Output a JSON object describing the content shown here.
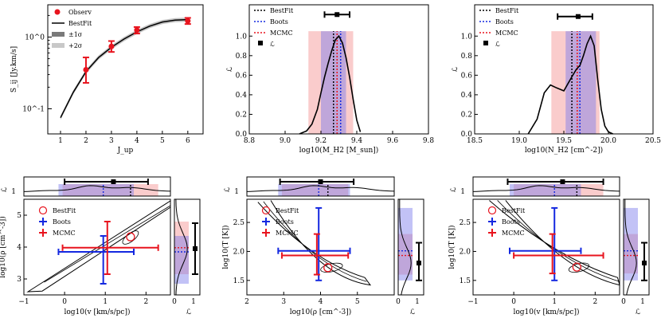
{
  "chart_data": [
    {
      "id": "sed",
      "type": "line",
      "xlabel": "J_up",
      "ylabel": "S_ij [Jy.km/s]",
      "x_ticks": [
        "1",
        "2",
        "3",
        "4",
        "5",
        "6"
      ],
      "y_ticks": [
        "10^-1",
        "10^0"
      ],
      "xlim": [
        0.5,
        6.6
      ],
      "ylim_log10": [
        -1.35,
        0.45
      ],
      "legend": [
        "Observ",
        "BestFit",
        "±1σ",
        "+2σ"
      ],
      "model": {
        "x": [
          1,
          1.5,
          2,
          2.5,
          3,
          3.5,
          4,
          4.5,
          5,
          5.5,
          6
        ],
        "y": [
          0.075,
          0.17,
          0.33,
          0.52,
          0.72,
          0.94,
          1.18,
          1.42,
          1.62,
          1.72,
          1.75
        ]
      },
      "observations": [
        {
          "x": 2,
          "y": 0.35,
          "lo": 0.23,
          "hi": 0.52
        },
        {
          "x": 3,
          "y": 0.74,
          "lo": 0.62,
          "hi": 0.88
        },
        {
          "x": 4,
          "y": 1.25,
          "lo": 1.12,
          "hi": 1.38
        },
        {
          "x": 6,
          "y": 1.68,
          "lo": 1.52,
          "hi": 1.85
        }
      ]
    },
    {
      "id": "mh2",
      "type": "line",
      "xlabel": "log10(M_H2 [M_sun])",
      "ylabel": "ℒ",
      "x_ticks": [
        "8.8",
        "9.0",
        "9.2",
        "9.4",
        "9.6",
        "9.8"
      ],
      "y_ticks": [
        "0.0",
        "0.2",
        "0.4",
        "0.6",
        "0.8",
        "1.0"
      ],
      "xlim": [
        8.8,
        9.8
      ],
      "ylim": [
        0,
        1.32
      ],
      "legend": [
        "BestFit",
        "Boots",
        "MCMC",
        "ℒ"
      ],
      "bestfit": 9.27,
      "boots": 9.31,
      "mcmc": 9.29,
      "range_red": [
        9.13,
        9.38
      ],
      "range_blue": [
        9.2,
        9.34
      ],
      "errorbar": {
        "x": 9.29,
        "lo": 9.22,
        "hi": 9.36,
        "y": 1.22
      },
      "curve": {
        "x": [
          9.08,
          9.12,
          9.15,
          9.18,
          9.2,
          9.22,
          9.24,
          9.26,
          9.28,
          9.3,
          9.32,
          9.34,
          9.36,
          9.38,
          9.4,
          9.42
        ],
        "y": [
          0,
          0.03,
          0.1,
          0.25,
          0.42,
          0.58,
          0.72,
          0.85,
          0.96,
          1.0,
          0.93,
          0.78,
          0.58,
          0.35,
          0.14,
          0.02
        ]
      }
    },
    {
      "id": "nh2",
      "type": "line",
      "xlabel": "log10(N_H2 [cm^-2])",
      "ylabel": "ℒ",
      "x_ticks": [
        "18.5",
        "19.0",
        "19.5",
        "20.0",
        "20.5"
      ],
      "y_ticks": [
        "0.0",
        "0.2",
        "0.4",
        "0.6",
        "0.8",
        "1.0"
      ],
      "xlim": [
        18.5,
        20.5
      ],
      "ylim": [
        0,
        1.32
      ],
      "legend": [
        "BestFit",
        "Boots",
        "MCMC",
        "ℒ"
      ],
      "bestfit": 19.59,
      "boots": 19.68,
      "mcmc": 19.65,
      "range_red": [
        19.36,
        19.9
      ],
      "range_blue": [
        19.52,
        19.86
      ],
      "errorbar": {
        "x": 19.66,
        "lo": 19.43,
        "hi": 19.82,
        "y": 1.2
      },
      "curve": {
        "x": [
          19.1,
          19.2,
          19.28,
          19.35,
          19.42,
          19.5,
          19.55,
          19.6,
          19.64,
          19.68,
          19.72,
          19.76,
          19.8,
          19.84,
          19.88,
          19.92,
          19.96,
          20.0,
          20.05
        ],
        "y": [
          0,
          0.15,
          0.42,
          0.5,
          0.47,
          0.44,
          0.52,
          0.6,
          0.66,
          0.7,
          0.8,
          0.92,
          1.0,
          0.9,
          0.55,
          0.25,
          0.08,
          0.02,
          0
        ]
      }
    },
    {
      "id": "rho_v",
      "type": "scatter",
      "xlabel": "log10(v [km/s/pc])",
      "ylabel": "log10(ρ [cm^-3])",
      "x_ticks": [
        "−1",
        "0",
        "1",
        "2"
      ],
      "y_ticks": [
        "3",
        "4",
        "5"
      ],
      "side_ticks": [
        "0",
        "1"
      ],
      "xlim": [
        -1,
        2.6
      ],
      "ylim": [
        2.5,
        5.5
      ],
      "legend": [
        "BestFit",
        "Boots",
        "MCMC"
      ],
      "bestfit": {
        "x": 1.62,
        "y": 4.32
      },
      "boots": {
        "x": 0.95,
        "xlo": -0.15,
        "xhi": 1.7,
        "y": 3.85,
        "ylo": 2.85,
        "yhi": 4.35
      },
      "mcmc": {
        "x": 1.05,
        "xlo": -0.05,
        "xhi": 2.3,
        "y": 3.98,
        "ylo": 3.15,
        "yhi": 4.8
      },
      "top_marker": {
        "x": 1.2,
        "lo": 0.0,
        "hi": 2.05
      },
      "side_marker": {
        "y": 3.95,
        "lo": 3.15,
        "hi": 4.75
      }
    },
    {
      "id": "T_rho",
      "type": "scatter",
      "xlabel": "log10(ρ [cm^-3])",
      "ylabel": "log10(T [K])",
      "x_ticks": [
        "2",
        "3",
        "4",
        "5"
      ],
      "y_ticks": [
        "1.5",
        "2.0",
        "2.5"
      ],
      "side_ticks": [
        "0",
        "1"
      ],
      "xlim": [
        2,
        6
      ],
      "ylim": [
        1.25,
        2.9
      ],
      "legend": [
        "BestFit",
        "Boots",
        "MCMC"
      ],
      "bestfit": {
        "x": 4.2,
        "y": 1.72
      },
      "boots": {
        "x": 3.95,
        "xlo": 2.85,
        "xhi": 4.8,
        "y": 2.01,
        "ylo": 1.5,
        "yhi": 2.75
      },
      "mcmc": {
        "x": 3.9,
        "xlo": 2.95,
        "xhi": 4.75,
        "y": 1.93,
        "ylo": 1.6,
        "yhi": 2.3
      },
      "top_marker": {
        "x": 4.0,
        "lo": 2.9,
        "hi": 4.9
      },
      "side_marker": {
        "y": 1.8,
        "lo": 1.5,
        "hi": 2.15
      }
    },
    {
      "id": "T_v",
      "type": "scatter",
      "xlabel": "log10(v [km/s/pc])",
      "ylabel": "log10(T [K])",
      "x_ticks": [
        "−1",
        "0",
        "1",
        "2"
      ],
      "y_ticks": [
        "1.5",
        "2.0",
        "2.5"
      ],
      "side_ticks": [
        "0",
        "1"
      ],
      "xlim": [
        -1,
        2.6
      ],
      "ylim": [
        1.25,
        2.9
      ],
      "legend": [
        "BestFit",
        "Boots",
        "MCMC"
      ],
      "bestfit": {
        "x": 1.55,
        "y": 1.73
      },
      "boots": {
        "x": 1.0,
        "xlo": -0.1,
        "xhi": 1.65,
        "y": 2.01,
        "ylo": 1.5,
        "yhi": 2.75
      },
      "mcmc": {
        "x": 0.95,
        "xlo": 0.0,
        "xhi": 2.2,
        "y": 1.93,
        "ylo": 1.62,
        "yhi": 2.3
      },
      "top_marker": {
        "x": 1.2,
        "lo": -0.15,
        "hi": 2.2
      },
      "side_marker": {
        "y": 1.8,
        "lo": 1.5,
        "hi": 2.15
      }
    }
  ]
}
